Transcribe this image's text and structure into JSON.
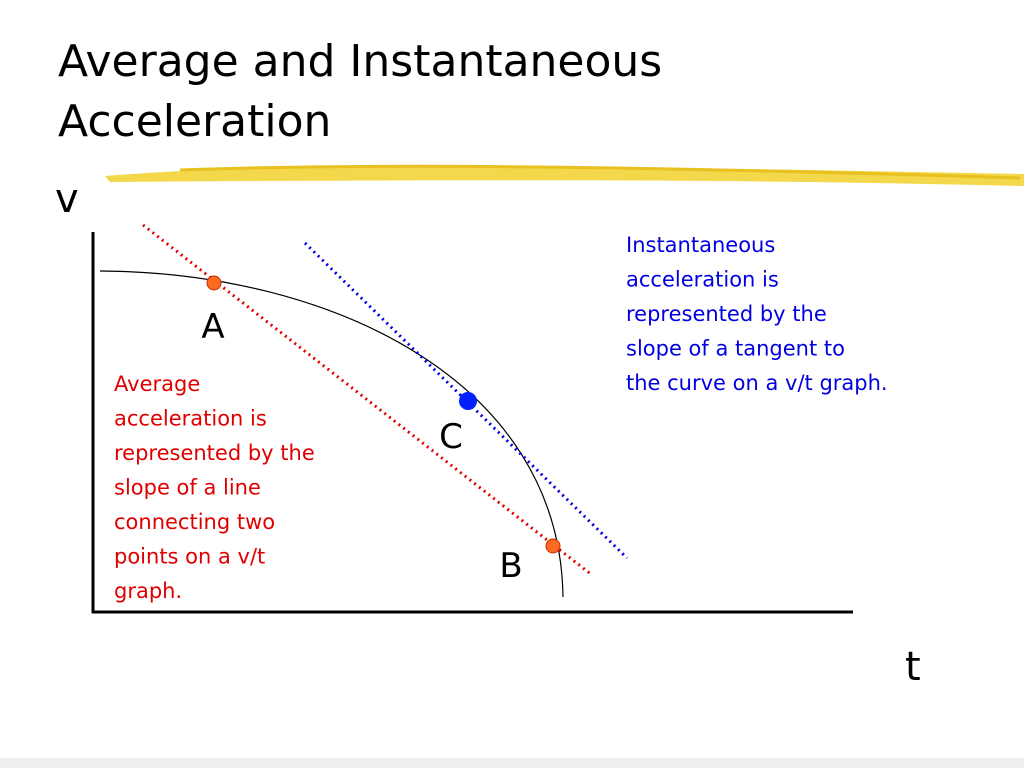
{
  "title": [
    "Average and Instantaneous",
    "Acceleration"
  ],
  "axes": {
    "y_label": "v",
    "x_label": "t"
  },
  "points": [
    {
      "label": "A"
    },
    {
      "label": "C"
    },
    {
      "label": "B"
    }
  ],
  "average_note": [
    "Average",
    "acceleration is",
    "represented by the",
    "slope of a line",
    "connecting two",
    "points on a v/t",
    "graph."
  ],
  "instantaneous_note": [
    "Instantaneous",
    "acceleration is",
    "represented by the",
    "slope of a tangent to",
    "the curve on a v/t graph."
  ]
}
